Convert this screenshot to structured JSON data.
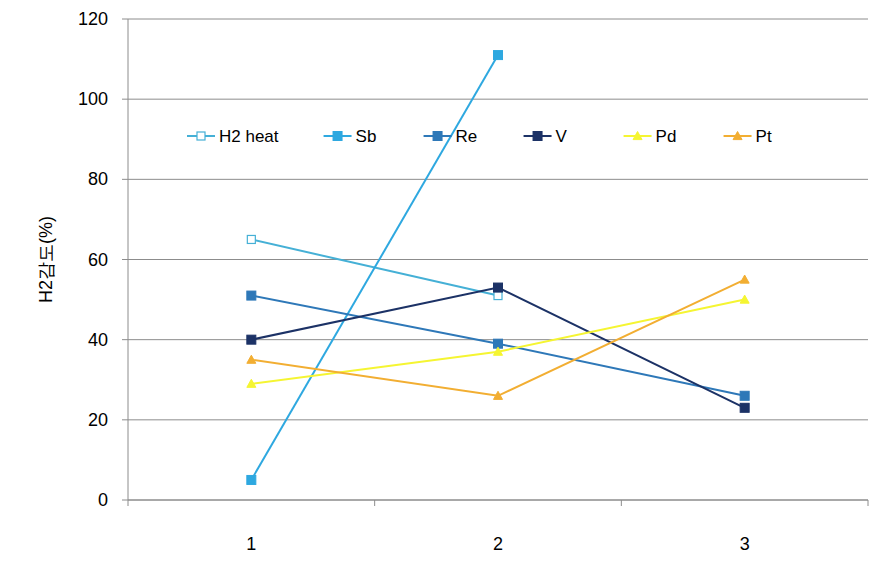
{
  "chart_data": {
    "type": "line",
    "y_label": "H2감도(%)",
    "categories": [
      "1",
      "2",
      "3"
    ],
    "series": [
      {
        "name": "H2 heat",
        "color": "#45b0d6",
        "marker": "square_open",
        "values": [
          65,
          51,
          null
        ]
      },
      {
        "name": "Sb",
        "color": "#2ea8e0",
        "marker": "square",
        "values": [
          5,
          111,
          null
        ]
      },
      {
        "name": "Re",
        "color": "#2e78b8",
        "marker": "square",
        "values": [
          51,
          39,
          26
        ]
      },
      {
        "name": "V",
        "color": "#1c3266",
        "marker": "square",
        "values": [
          40,
          53,
          23
        ]
      },
      {
        "name": "Pd",
        "color": "#f5f532",
        "marker": "triangle",
        "values": [
          29,
          37,
          50
        ]
      },
      {
        "name": "Pt",
        "color": "#f2ae32",
        "marker": "triangle",
        "values": [
          35,
          26,
          55
        ]
      }
    ],
    "ylim": [
      0,
      120
    ],
    "yticks": [
      0,
      20,
      40,
      60,
      80,
      100,
      120
    ],
    "grid": true,
    "legend": "top"
  }
}
